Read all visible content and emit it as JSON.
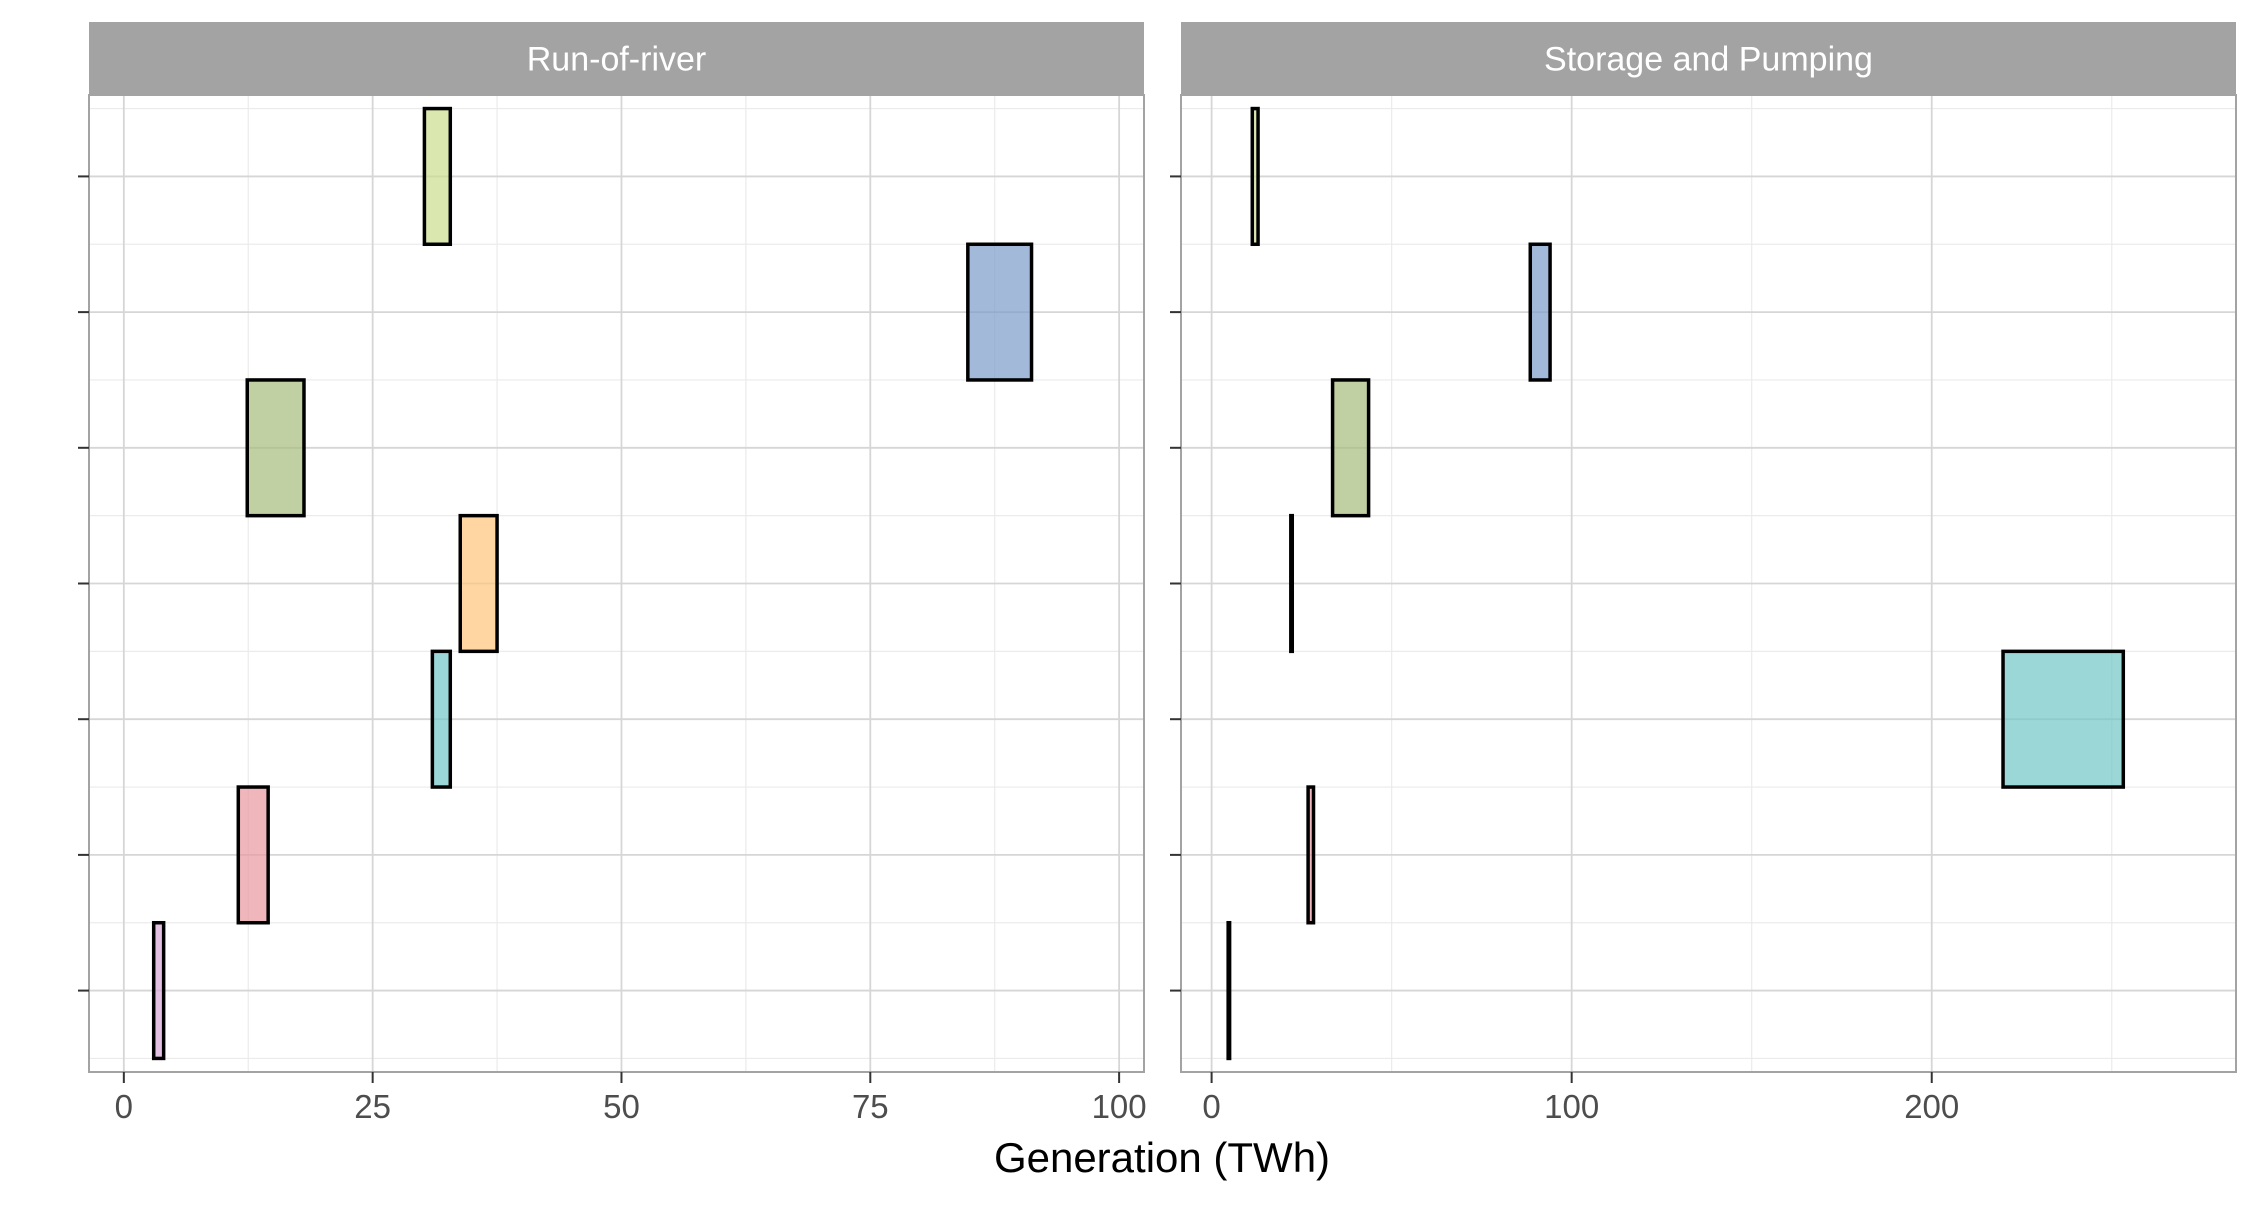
{
  "chart_data": {
    "type": "bar",
    "xlabel": "Generation (TWh)",
    "ylabel": "",
    "grid": true,
    "legend": "none",
    "palette": {
      "row1": "#D5A6D6",
      "row2": "#E8989E",
      "row3": "#72C6C6",
      "row4": "#FFC57A",
      "row5": "#A6BC7C",
      "row6": "#7C9BCB",
      "row7": "#CADD8C"
    },
    "panels": [
      {
        "strip": "Run-of-river",
        "xlim": [
          -3.5,
          102.5
        ],
        "xticks": [
          0,
          25,
          50,
          75,
          100
        ],
        "xtick_labels": [
          "0",
          "25",
          "50",
          "75",
          "100"
        ],
        "bars": [
          {
            "row": 1,
            "xmin": 3.0,
            "xmax": 4.0,
            "color": "#D5A6D6"
          },
          {
            "row": 2,
            "xmin": 11.5,
            "xmax": 14.5,
            "color": "#E8989E"
          },
          {
            "row": 3,
            "xmin": 31.0,
            "xmax": 32.8,
            "color": "#72C6C6"
          },
          {
            "row": 4,
            "xmin": 33.8,
            "xmax": 37.5,
            "color": "#FFC57A"
          },
          {
            "row": 5,
            "xmin": 12.4,
            "xmax": 18.1,
            "color": "#A6BC7C"
          },
          {
            "row": 6,
            "xmin": 84.8,
            "xmax": 91.2,
            "color": "#7C9BCB"
          },
          {
            "row": 7,
            "xmin": 30.2,
            "xmax": 32.8,
            "color": "#CADD8C"
          }
        ]
      },
      {
        "strip": "Storage and Pumping",
        "xlim": [
          -8.5,
          284.5
        ],
        "xticks": [
          0,
          100,
          200
        ],
        "xtick_labels": [
          "0",
          "100",
          "200"
        ],
        "bars": [
          {
            "row": 1,
            "xmin": 4.6,
            "xmax": 5.0,
            "color": "#D5A6D6"
          },
          {
            "row": 2,
            "xmin": 26.8,
            "xmax": 28.3,
            "color": "#E8989E"
          },
          {
            "row": 3,
            "xmin": 219.8,
            "xmax": 253.2,
            "color": "#72C6C6"
          },
          {
            "row": 4,
            "xmin": 22.0,
            "xmax": 22.4,
            "color": "#FFC57A"
          },
          {
            "row": 5,
            "xmin": 33.6,
            "xmax": 43.6,
            "color": "#A6BC7C"
          },
          {
            "row": 6,
            "xmin": 88.5,
            "xmax": 94.0,
            "color": "#7C9BCB"
          },
          {
            "row": 7,
            "xmin": 11.3,
            "xmax": 12.9,
            "color": "#CADD8C"
          }
        ]
      }
    ]
  }
}
